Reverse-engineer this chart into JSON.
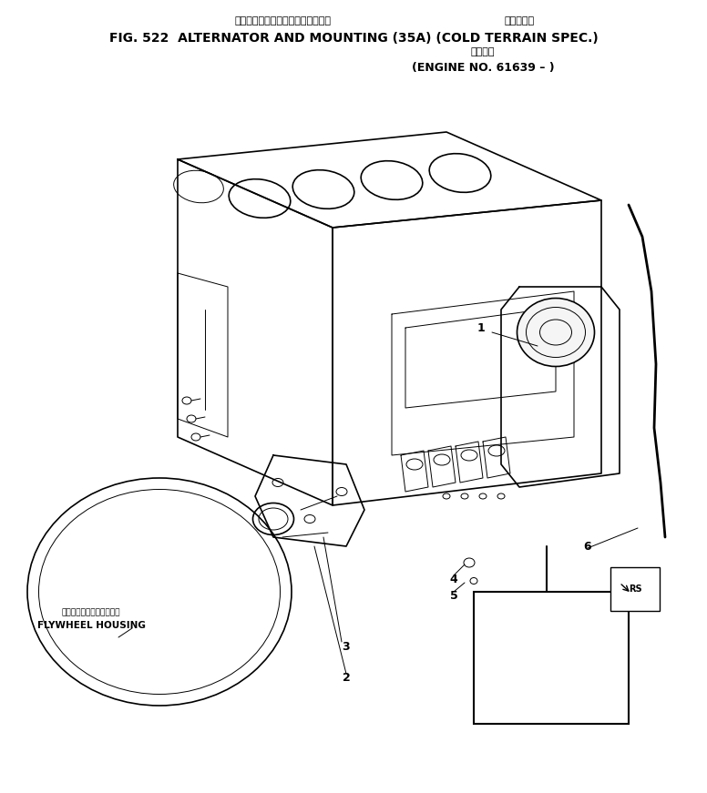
{
  "title_line1_ja": "オルタネータおよびマウンティング",
  "title_line1_ja2": "寒冷地仕様",
  "title_line2": "FIG. 522  ALTERNATOR AND MOUNTING (35A) (COLD TERRAIN SPEC.)",
  "title_line3_ja": "適用号機",
  "title_line3_en": "(ENGINE NO. 61639 – )",
  "background_color": "#ffffff",
  "line_color": "#000000",
  "label_flywheel_ja": "フライホイールハウジング",
  "label_flywheel_en": "FLYWHEEL HOUSING",
  "part_numbers": [
    "1",
    "2",
    "3",
    "4",
    "5",
    "6"
  ],
  "detail_box_label": "RS"
}
